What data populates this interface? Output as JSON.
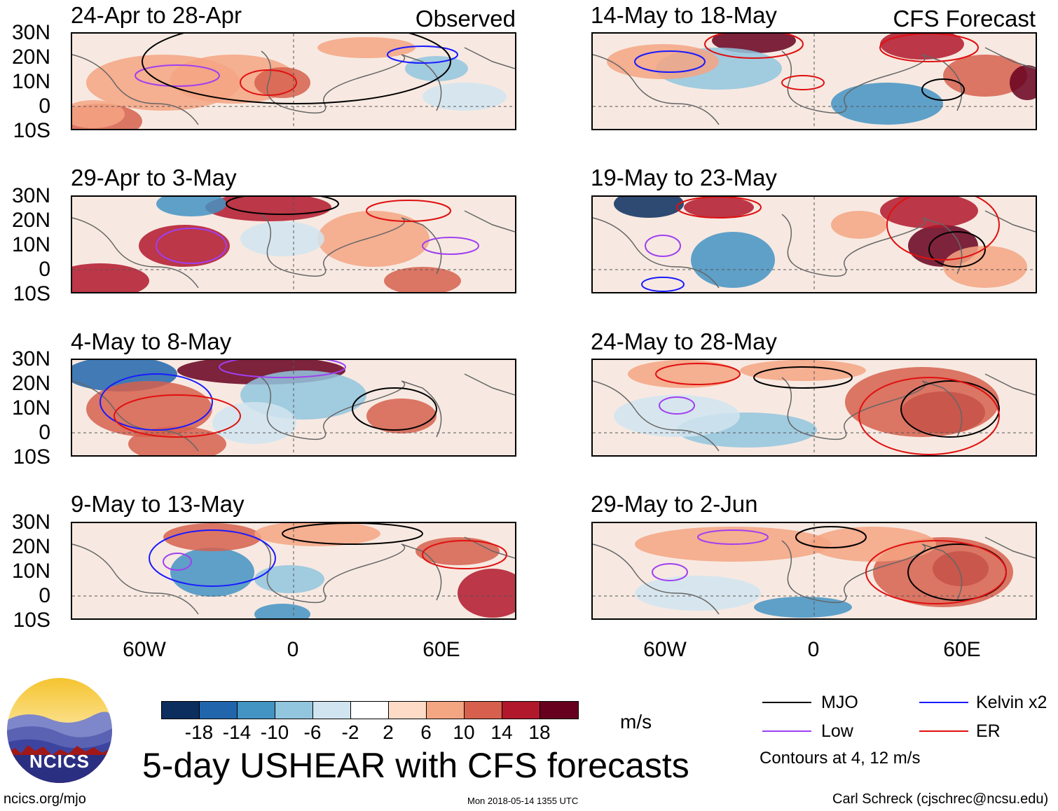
{
  "header": {
    "observed_label": "Observed",
    "forecast_label": "CFS Forecast"
  },
  "axes": {
    "lat_labels": [
      "30N",
      "20N",
      "10N",
      "0",
      "10S"
    ],
    "lon_labels": [
      "60W",
      "0",
      "60E"
    ]
  },
  "panels": [
    {
      "title": "24-Apr to 28-Apr",
      "kind": "observed"
    },
    {
      "title": "29-Apr to 3-May",
      "kind": "observed"
    },
    {
      "title": "4-May to 8-May",
      "kind": "observed"
    },
    {
      "title": "9-May to 13-May",
      "kind": "observed"
    },
    {
      "title": "14-May to 18-May",
      "kind": "forecast"
    },
    {
      "title": "19-May to 23-May",
      "kind": "forecast"
    },
    {
      "title": "24-May to 28-May",
      "kind": "forecast"
    },
    {
      "title": "29-May to 2-Jun",
      "kind": "forecast"
    }
  ],
  "colorbar": {
    "ticks": [
      "-18",
      "-14",
      "-10",
      "-6",
      "-2",
      "2",
      "6",
      "10",
      "14",
      "18"
    ],
    "colors": [
      "#0b2e5e",
      "#2166ac",
      "#4393c3",
      "#92c5de",
      "#d1e5f0",
      "#ffffff",
      "#fddbc7",
      "#f4a582",
      "#d6604d",
      "#b2182b",
      "#67001f"
    ],
    "units": "m/s"
  },
  "legend": {
    "mjo": "MJO",
    "kelvin": "Kelvin x2",
    "low": "Low",
    "er": "ER",
    "note": "Contours at 4, 12 m/s",
    "colors": {
      "mjo": "#000000",
      "kelvin": "#1a1aff",
      "low": "#a040f0",
      "er": "#e01010"
    }
  },
  "title": "5-day USHEAR with CFS forecasts",
  "footer": {
    "site": "ncics.org/mjo",
    "timestamp": "Mon 2018-05-14 1355 UTC",
    "credit": "Carl Schreck (cjschrec@ncsu.edu)"
  },
  "logo": {
    "text": "NCICS"
  }
}
